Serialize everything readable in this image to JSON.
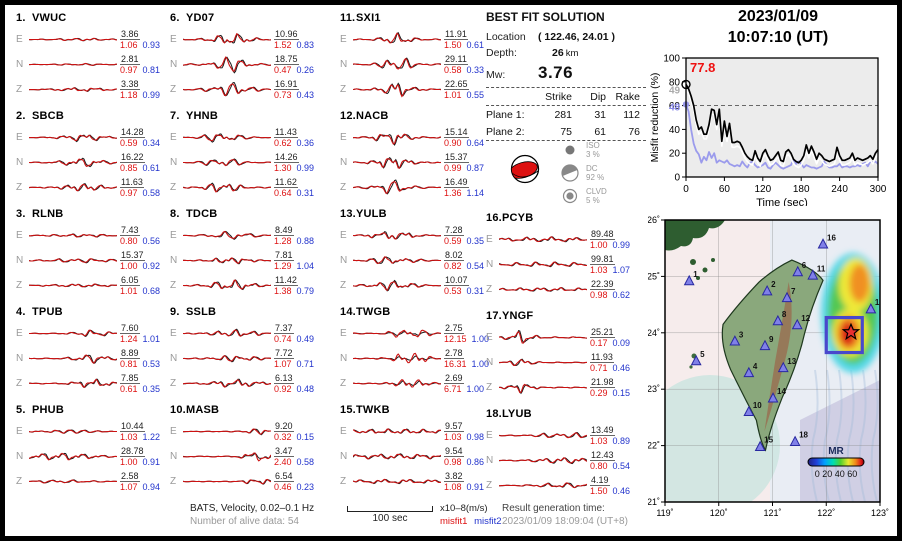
{
  "header": {
    "date": "2023/01/09",
    "time": "10:07:10  (UT)"
  },
  "solution": {
    "title": "BEST FIT SOLUTION",
    "location_label": "Location",
    "location_value": "( 122.46,  24.01 )",
    "depth_label": "Depth:",
    "depth_value": "26",
    "depth_unit": "km",
    "mw_label": "Mw:",
    "mw_value": "3.76",
    "table": {
      "headers": [
        "Strike",
        "Dip",
        "Rake"
      ],
      "rows": [
        {
          "label": "Plane 1:",
          "strike": "281",
          "dip": "31",
          "rake": "112"
        },
        {
          "label": "Plane 2:",
          "strike": "75",
          "dip": "61",
          "rake": "76"
        }
      ]
    },
    "decomposition": [
      {
        "name": "ISO",
        "pct": "3 %",
        "kind": "iso"
      },
      {
        "name": "DC",
        "pct": "92 %",
        "kind": "dc"
      },
      {
        "name": "CLVD",
        "pct": "5 %",
        "kind": "clvd"
      }
    ]
  },
  "stations": [
    {
      "num": "1.",
      "name": "VWUC",
      "col": 0,
      "c": 0.6,
      "s": 0.25,
      "rows": [
        {
          "comp": "E",
          "amp": "3.86",
          "m1": "1.06",
          "m2": "0.93",
          "w": 0.5
        },
        {
          "comp": "N",
          "amp": "2.81",
          "m1": "0.97",
          "m2": "0.81",
          "w": 0.35
        },
        {
          "comp": "Z",
          "amp": "3.38",
          "m1": "1.18",
          "m2": "0.99",
          "w": 0.7
        }
      ]
    },
    {
      "num": "2.",
      "name": "SBCB",
      "col": 0,
      "c": 0.62,
      "s": 0.18,
      "rows": [
        {
          "comp": "E",
          "amp": "14.28",
          "m1": "0.59",
          "m2": "0.34",
          "w": 1.4
        },
        {
          "comp": "N",
          "amp": "16.22",
          "m1": "0.85",
          "m2": "0.61",
          "w": 1.7
        },
        {
          "comp": "Z",
          "amp": "11.63",
          "m1": "0.97",
          "m2": "0.58",
          "w": 1.5
        }
      ]
    },
    {
      "num": "3.",
      "name": "RLNB",
      "col": 0,
      "c": 0.6,
      "s": 0.3,
      "rows": [
        {
          "comp": "E",
          "amp": "7.43",
          "m1": "0.80",
          "m2": "0.56",
          "w": 0.6
        },
        {
          "comp": "N",
          "amp": "15.37",
          "m1": "1.00",
          "m2": "0.92",
          "w": 0.8
        },
        {
          "comp": "Z",
          "amp": "6.05",
          "m1": "1.01",
          "m2": "0.68",
          "w": 0.6
        }
      ]
    },
    {
      "num": "4.",
      "name": "TPUB",
      "col": 0,
      "c": 0.72,
      "s": 0.15,
      "rows": [
        {
          "comp": "E",
          "amp": "7.60",
          "m1": "1.24",
          "m2": "1.01",
          "w": 1.3
        },
        {
          "comp": "N",
          "amp": "8.89",
          "m1": "0.81",
          "m2": "0.53",
          "w": 1.7
        },
        {
          "comp": "Z",
          "amp": "7.85",
          "m1": "0.61",
          "m2": "0.35",
          "w": 1.6
        }
      ]
    },
    {
      "num": "5.",
      "name": "PHUB",
      "col": 0,
      "c": 0.35,
      "s": 0.3,
      "rows": [
        {
          "comp": "E",
          "amp": "10.44",
          "m1": "1.03",
          "m2": "1.22",
          "w": 0.7
        },
        {
          "comp": "N",
          "amp": "28.78",
          "m1": "1.00",
          "m2": "0.91",
          "w": 1.4
        },
        {
          "comp": "Z",
          "amp": "2.58",
          "m1": "1.07",
          "m2": "0.94",
          "w": 0.6
        }
      ]
    },
    {
      "num": "6.",
      "name": "YD07",
      "col": 1,
      "c": 0.55,
      "s": 0.16,
      "rows": [
        {
          "comp": "E",
          "amp": "10.96",
          "m1": "1.52",
          "m2": "0.83",
          "w": 2.2
        },
        {
          "comp": "N",
          "amp": "18.75",
          "m1": "0.47",
          "m2": "0.26",
          "w": 2.7
        },
        {
          "comp": "Z",
          "amp": "16.91",
          "m1": "0.73",
          "m2": "0.43",
          "w": 2.6
        }
      ]
    },
    {
      "num": "7.",
      "name": "YHNB",
      "col": 1,
      "c": 0.45,
      "s": 0.15,
      "rows": [
        {
          "comp": "E",
          "amp": "11.43",
          "m1": "0.62",
          "m2": "0.36",
          "w": 2.0
        },
        {
          "comp": "N",
          "amp": "14.26",
          "m1": "1.30",
          "m2": "0.99",
          "w": 1.8
        },
        {
          "comp": "Z",
          "amp": "11.62",
          "m1": "0.64",
          "m2": "0.31",
          "w": 2.0
        }
      ]
    },
    {
      "num": "8.",
      "name": "TDCB",
      "col": 1,
      "c": 0.55,
      "s": 0.18,
      "rows": [
        {
          "comp": "E",
          "amp": "8.49",
          "m1": "1.28",
          "m2": "0.88",
          "w": 1.5
        },
        {
          "comp": "N",
          "amp": "7.81",
          "m1": "1.29",
          "m2": "1.04",
          "w": 1.2
        },
        {
          "comp": "Z",
          "amp": "11.42",
          "m1": "1.38",
          "m2": "0.79",
          "w": 2.0
        }
      ]
    },
    {
      "num": "9.",
      "name": "SSLB",
      "col": 1,
      "c": 0.6,
      "s": 0.2,
      "rows": [
        {
          "comp": "E",
          "amp": "7.37",
          "m1": "0.74",
          "m2": "0.49",
          "w": 1.4
        },
        {
          "comp": "N",
          "amp": "7.72",
          "m1": "1.07",
          "m2": "0.71",
          "w": 1.2
        },
        {
          "comp": "Z",
          "amp": "6.13",
          "m1": "0.92",
          "m2": "0.48",
          "w": 1.5
        }
      ]
    },
    {
      "num": "10.",
      "name": "MASB",
      "col": 1,
      "c": 0.85,
      "s": 0.12,
      "rows": [
        {
          "comp": "E",
          "amp": "9.20",
          "m1": "0.32",
          "m2": "0.15",
          "w": 1.1
        },
        {
          "comp": "N",
          "amp": "3.47",
          "m1": "2.40",
          "m2": "0.58",
          "w": 1.2,
          "rs": 1.7
        },
        {
          "comp": "Z",
          "amp": "6.54",
          "m1": "0.46",
          "m2": "0.23",
          "w": 1.1
        }
      ]
    },
    {
      "num": "11.",
      "name": "SXI1",
      "col": 2,
      "c": 0.5,
      "s": 0.12,
      "rows": [
        {
          "comp": "E",
          "amp": "11.91",
          "m1": "1.50",
          "m2": "0.61",
          "w": 2.2
        },
        {
          "comp": "N",
          "amp": "29.11",
          "m1": "0.58",
          "m2": "0.33",
          "w": 3.0
        },
        {
          "comp": "Z",
          "amp": "22.65",
          "m1": "1.01",
          "m2": "0.55",
          "w": 2.8
        }
      ]
    },
    {
      "num": "12.",
      "name": "NACB",
      "col": 2,
      "c": 0.45,
      "s": 0.14,
      "rows": [
        {
          "comp": "E",
          "amp": "15.14",
          "m1": "0.90",
          "m2": "0.64",
          "w": 2.4
        },
        {
          "comp": "N",
          "amp": "15.37",
          "m1": "0.99",
          "m2": "0.87",
          "w": 2.4
        },
        {
          "comp": "Z",
          "amp": "16.49",
          "m1": "1.36",
          "m2": "1.14",
          "w": 2.6
        }
      ]
    },
    {
      "num": "13.",
      "name": "YULB",
      "col": 2,
      "c": 0.45,
      "s": 0.18,
      "rows": [
        {
          "comp": "E",
          "amp": "7.28",
          "m1": "0.59",
          "m2": "0.35",
          "w": 1.6
        },
        {
          "comp": "N",
          "amp": "8.02",
          "m1": "0.82",
          "m2": "0.54",
          "w": 1.6
        },
        {
          "comp": "Z",
          "amp": "10.07",
          "m1": "0.53",
          "m2": "0.31",
          "w": 1.8
        }
      ]
    },
    {
      "num": "14.",
      "name": "TWGB",
      "col": 2,
      "c": 0.65,
      "s": 0.15,
      "rows": [
        {
          "comp": "E",
          "amp": "2.75",
          "m1": "12.15",
          "m2": "1.00",
          "w": 1.0,
          "rs": 2.2
        },
        {
          "comp": "N",
          "amp": "2.78",
          "m1": "16.31",
          "m2": "1.00",
          "w": 0.9,
          "rs": 2.6
        },
        {
          "comp": "Z",
          "amp": "2.69",
          "m1": "6.71",
          "m2": "1.00",
          "w": 1.0,
          "rs": 1.9
        }
      ]
    },
    {
      "num": "15.",
      "name": "TWKB",
      "col": 2,
      "c": 0.5,
      "s": 0.5,
      "rows": [
        {
          "comp": "E",
          "amp": "9.57",
          "m1": "1.03",
          "m2": "0.98",
          "w": 0.9
        },
        {
          "comp": "N",
          "amp": "9.54",
          "m1": "0.98",
          "m2": "0.86",
          "w": 1.0
        },
        {
          "comp": "Z",
          "amp": "3.82",
          "m1": "1.08",
          "m2": "0.91",
          "w": 0.8
        }
      ]
    },
    {
      "num": "16.",
      "name": "PCYB",
      "col": 3,
      "c": 0.55,
      "s": 0.45,
      "rows": [
        {
          "comp": "E",
          "amp": "89.48",
          "m1": "1.00",
          "m2": "0.99",
          "w": 0.9
        },
        {
          "comp": "N",
          "amp": "99.81",
          "m1": "1.03",
          "m2": "1.07",
          "w": 0.9
        },
        {
          "comp": "Z",
          "amp": "22.39",
          "m1": "0.98",
          "m2": "0.62",
          "w": 0.7
        }
      ]
    },
    {
      "num": "17.",
      "name": "YNGF",
      "col": 3,
      "c": 0.25,
      "s": 0.1,
      "rows": [
        {
          "comp": "E",
          "amp": "25.21",
          "m1": "0.17",
          "m2": "0.09",
          "w": 2.6
        },
        {
          "comp": "N",
          "amp": "11.93",
          "m1": "0.71",
          "m2": "0.46",
          "w": 1.5
        },
        {
          "comp": "Z",
          "amp": "21.98",
          "m1": "0.29",
          "m2": "0.15",
          "w": 1.9
        }
      ]
    },
    {
      "num": "18.",
      "name": "LYUB",
      "col": 3,
      "c": 0.75,
      "s": 0.25,
      "rows": [
        {
          "comp": "E",
          "amp": "13.49",
          "m1": "1.03",
          "m2": "0.89",
          "w": 1.1
        },
        {
          "comp": "N",
          "amp": "12.43",
          "m1": "0.80",
          "m2": "0.54",
          "w": 1.2
        },
        {
          "comp": "Z",
          "amp": "4.19",
          "m1": "1.50",
          "m2": "0.46",
          "w": 1.0
        }
      ]
    }
  ],
  "chart_data": {
    "type": "line",
    "title": "",
    "xlabel": "Time (sec)",
    "ylabel": "Misfit reduction (%)",
    "xlim": [
      0,
      300
    ],
    "ylim": [
      0,
      100
    ],
    "xticks": [
      0,
      60,
      120,
      180,
      240,
      300
    ],
    "yticks": [
      0,
      20,
      40,
      60,
      80,
      100
    ],
    "grid": false,
    "dashed_line_y": 60,
    "plot_bg": "#ececec",
    "annotations": {
      "best_value": "77.8",
      "gray_count": "49",
      "blue_count": "48"
    },
    "x_start": 0,
    "x_step": 4,
    "series": [
      {
        "name": "misfit1",
        "color": "#000000",
        "y": [
          77.8,
          74,
          68,
          60,
          48,
          40,
          42,
          36,
          36,
          44,
          57,
          56,
          44,
          57,
          30,
          47,
          34,
          45,
          29,
          29,
          30,
          29,
          25,
          20,
          17,
          15,
          14,
          22,
          16,
          13,
          20,
          23,
          18,
          14,
          15,
          18,
          21,
          14,
          13,
          21,
          23,
          20,
          15,
          13,
          12,
          14,
          18,
          27,
          20,
          26,
          21,
          15,
          20,
          18,
          15,
          14,
          13,
          14,
          15,
          25,
          18,
          14,
          14,
          15,
          16,
          20,
          14,
          16,
          15,
          14,
          15,
          16,
          18,
          15,
          20,
          23
        ]
      },
      {
        "name": "misfit2",
        "color": "#9b9bec",
        "y": [
          61,
          55,
          40,
          28,
          22,
          19,
          12,
          17,
          14,
          21,
          16,
          20,
          12,
          14,
          13,
          12,
          14,
          11,
          10,
          9,
          10,
          9,
          13,
          10,
          8,
          12,
          13,
          10,
          8,
          9,
          10,
          12,
          8,
          7,
          10,
          12,
          10,
          8,
          7,
          8,
          9,
          10,
          15,
          11,
          13,
          11,
          8,
          10,
          9,
          8,
          8,
          7,
          8,
          9,
          13,
          10,
          8,
          8,
          9,
          9,
          11,
          8,
          9,
          9,
          8,
          9,
          9,
          10,
          9,
          11,
          12,
          9,
          13,
          12,
          13,
          11
        ]
      }
    ],
    "shadow_series": {
      "name": "misfit-white",
      "color": "#ffffff",
      "offset_from": "misfit1",
      "dy": -4
    }
  },
  "map": {
    "lon_range": [
      119,
      123
    ],
    "lat_range": [
      21,
      26
    ],
    "lon_ticks": [
      "119˚",
      "120˚",
      "121˚",
      "122˚",
      "123˚"
    ],
    "lat_ticks": [
      "26˚",
      "25˚",
      "24˚",
      "23˚",
      "22˚",
      "21˚"
    ],
    "epicenter": {
      "lon": 122.46,
      "lat": 24.01
    },
    "search_box": {
      "lon_min": 122.0,
      "lon_max": 122.67,
      "lat_min": 23.65,
      "lat_max": 24.27
    },
    "colorbar": {
      "label": "MR",
      "ticks": "0 20 40 60"
    },
    "stations": [
      {
        "id": "1",
        "lon": 119.45,
        "lat": 24.92
      },
      {
        "id": "2",
        "lon": 120.9,
        "lat": 24.74
      },
      {
        "id": "3",
        "lon": 120.3,
        "lat": 23.85
      },
      {
        "id": "4",
        "lon": 120.56,
        "lat": 23.29
      },
      {
        "id": "5",
        "lon": 119.58,
        "lat": 23.5
      },
      {
        "id": "6",
        "lon": 121.47,
        "lat": 25.08
      },
      {
        "id": "7",
        "lon": 121.27,
        "lat": 24.62
      },
      {
        "id": "8",
        "lon": 121.1,
        "lat": 24.21
      },
      {
        "id": "9",
        "lon": 120.86,
        "lat": 23.77
      },
      {
        "id": "10",
        "lon": 120.56,
        "lat": 22.6
      },
      {
        "id": "11",
        "lon": 121.75,
        "lat": 25.02
      },
      {
        "id": "12",
        "lon": 121.46,
        "lat": 24.14
      },
      {
        "id": "13",
        "lon": 121.2,
        "lat": 23.38
      },
      {
        "id": "14",
        "lon": 121.01,
        "lat": 22.84
      },
      {
        "id": "15",
        "lon": 120.77,
        "lat": 21.98
      },
      {
        "id": "16",
        "lon": 121.94,
        "lat": 25.57
      },
      {
        "id": "17",
        "lon": 122.83,
        "lat": 24.42
      },
      {
        "id": "18",
        "lon": 121.42,
        "lat": 22.07
      }
    ]
  },
  "footer": {
    "line1": "BATS, Velocity, 0.02–0.1 Hz",
    "line2": "Number of alive data: 54",
    "scalebar_label": "100 sec",
    "units": "x10–8(m/s)",
    "misfit1_label": "misfit1",
    "misfit2_label": "misfit2",
    "result_label": "Result generation time:",
    "result_value": "2023/01/09 18:09:04 (UT+8)"
  },
  "colors": {
    "misfit1": "#dd1111",
    "misfit2": "#2233cc",
    "beachball_fill": "#dd1111",
    "station_marker": "#8080e8",
    "epicenter_star": "#e83030"
  }
}
